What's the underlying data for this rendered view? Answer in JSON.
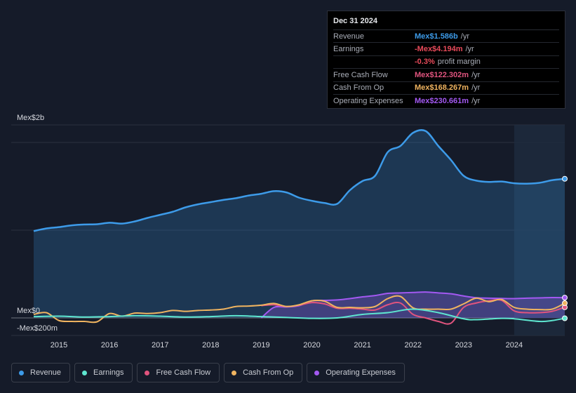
{
  "tooltip": {
    "date": "Dec 31 2024",
    "rows": [
      {
        "label": "Revenue",
        "value": "Mex$1.586b",
        "suffix": "/yr",
        "color": "#3d9be9"
      },
      {
        "label": "Earnings",
        "value": "-Mex$4.194m",
        "suffix": "/yr",
        "color": "#ea4b5b"
      },
      {
        "label": "",
        "value": "-0.3%",
        "suffix": "profit margin",
        "color": "#ea4b5b"
      },
      {
        "label": "Free Cash Flow",
        "value": "Mex$122.302m",
        "suffix": "/yr",
        "color": "#e0547e"
      },
      {
        "label": "Cash From Op",
        "value": "Mex$168.267m",
        "suffix": "/yr",
        "color": "#f0b460"
      },
      {
        "label": "Operating Expenses",
        "value": "Mex$230.661m",
        "suffix": "/yr",
        "color": "#a359f2"
      }
    ]
  },
  "legend": [
    {
      "label": "Revenue",
      "color": "#3d9be9"
    },
    {
      "label": "Earnings",
      "color": "#5ee6d0"
    },
    {
      "label": "Free Cash Flow",
      "color": "#e0547e"
    },
    {
      "label": "Cash From Op",
      "color": "#f0b460"
    },
    {
      "label": "Operating Expenses",
      "color": "#a359f2"
    }
  ],
  "chart_data": {
    "type": "area",
    "title": "",
    "y_unit": "Mex$ millions",
    "y_tick_labels": [
      {
        "value": 2000,
        "label": "Mex$2b"
      },
      {
        "value": 0,
        "label": "Mex$0"
      },
      {
        "value": -200,
        "label": "-Mex$200m"
      }
    ],
    "ylim": [
      -200,
      2200
    ],
    "xlim": [
      2014.5,
      2025.0
    ],
    "x_ticks": [
      "2015",
      "2016",
      "2017",
      "2018",
      "2019",
      "2020",
      "2021",
      "2022",
      "2023",
      "2024"
    ],
    "highlight_from": 2024.0,
    "series": [
      {
        "name": "Revenue",
        "color": "#3d9be9",
        "fill": true,
        "points": [
          [
            2014.5,
            990
          ],
          [
            2014.75,
            1020
          ],
          [
            2015.0,
            1035
          ],
          [
            2015.25,
            1055
          ],
          [
            2015.5,
            1065
          ],
          [
            2015.75,
            1068
          ],
          [
            2016.0,
            1085
          ],
          [
            2016.25,
            1075
          ],
          [
            2016.5,
            1100
          ],
          [
            2016.75,
            1140
          ],
          [
            2017.0,
            1175
          ],
          [
            2017.25,
            1210
          ],
          [
            2017.5,
            1260
          ],
          [
            2017.75,
            1295
          ],
          [
            2018.0,
            1320
          ],
          [
            2018.25,
            1345
          ],
          [
            2018.5,
            1365
          ],
          [
            2018.75,
            1395
          ],
          [
            2019.0,
            1415
          ],
          [
            2019.25,
            1445
          ],
          [
            2019.5,
            1430
          ],
          [
            2019.75,
            1370
          ],
          [
            2020.0,
            1335
          ],
          [
            2020.25,
            1310
          ],
          [
            2020.5,
            1300
          ],
          [
            2020.75,
            1455
          ],
          [
            2021.0,
            1560
          ],
          [
            2021.25,
            1620
          ],
          [
            2021.5,
            1890
          ],
          [
            2021.75,
            1960
          ],
          [
            2022.0,
            2110
          ],
          [
            2022.25,
            2130
          ],
          [
            2022.5,
            1960
          ],
          [
            2022.75,
            1800
          ],
          [
            2023.0,
            1620
          ],
          [
            2023.25,
            1565
          ],
          [
            2023.5,
            1550
          ],
          [
            2023.75,
            1555
          ],
          [
            2024.0,
            1535
          ],
          [
            2024.25,
            1530
          ],
          [
            2024.5,
            1540
          ],
          [
            2024.75,
            1570
          ],
          [
            2025.0,
            1586
          ]
        ]
      },
      {
        "name": "Operating Expenses",
        "color": "#a359f2",
        "fill": true,
        "points": [
          [
            2019.0,
            0
          ],
          [
            2019.25,
            120
          ],
          [
            2019.5,
            125
          ],
          [
            2019.75,
            140
          ],
          [
            2020.0,
            195
          ],
          [
            2020.25,
            200
          ],
          [
            2020.5,
            205
          ],
          [
            2020.75,
            220
          ],
          [
            2021.0,
            240
          ],
          [
            2021.25,
            255
          ],
          [
            2021.5,
            280
          ],
          [
            2021.75,
            285
          ],
          [
            2022.0,
            290
          ],
          [
            2022.25,
            295
          ],
          [
            2022.5,
            285
          ],
          [
            2022.75,
            275
          ],
          [
            2023.0,
            250
          ],
          [
            2023.25,
            230
          ],
          [
            2023.5,
            225
          ],
          [
            2023.75,
            222
          ],
          [
            2024.0,
            220
          ],
          [
            2024.25,
            225
          ],
          [
            2024.5,
            228
          ],
          [
            2024.75,
            232
          ],
          [
            2025.0,
            231
          ]
        ]
      },
      {
        "name": "Free Cash Flow",
        "color": "#e0547e",
        "fill": false,
        "points": [
          [
            2019.0,
            140
          ],
          [
            2019.25,
            150
          ],
          [
            2019.5,
            130
          ],
          [
            2019.75,
            145
          ],
          [
            2020.0,
            175
          ],
          [
            2020.25,
            160
          ],
          [
            2020.5,
            110
          ],
          [
            2020.75,
            110
          ],
          [
            2021.0,
            100
          ],
          [
            2021.25,
            90
          ],
          [
            2021.5,
            150
          ],
          [
            2021.75,
            170
          ],
          [
            2022.0,
            40
          ],
          [
            2022.25,
            0
          ],
          [
            2022.5,
            -40
          ],
          [
            2022.75,
            -60
          ],
          [
            2023.0,
            120
          ],
          [
            2023.25,
            170
          ],
          [
            2023.5,
            195
          ],
          [
            2023.75,
            200
          ],
          [
            2024.0,
            80
          ],
          [
            2024.25,
            60
          ],
          [
            2024.5,
            60
          ],
          [
            2024.75,
            75
          ],
          [
            2025.0,
            122
          ]
        ]
      },
      {
        "name": "Cash From Op",
        "color": "#f0b460",
        "fill": false,
        "points": [
          [
            2014.5,
            40
          ],
          [
            2014.75,
            60
          ],
          [
            2015.0,
            -30
          ],
          [
            2015.25,
            -40
          ],
          [
            2015.5,
            -40
          ],
          [
            2015.75,
            -45
          ],
          [
            2016.0,
            50
          ],
          [
            2016.25,
            20
          ],
          [
            2016.5,
            55
          ],
          [
            2016.75,
            50
          ],
          [
            2017.0,
            60
          ],
          [
            2017.25,
            85
          ],
          [
            2017.5,
            75
          ],
          [
            2017.75,
            85
          ],
          [
            2018.0,
            90
          ],
          [
            2018.25,
            100
          ],
          [
            2018.5,
            130
          ],
          [
            2018.75,
            135
          ],
          [
            2019.0,
            145
          ],
          [
            2019.25,
            165
          ],
          [
            2019.5,
            130
          ],
          [
            2019.75,
            150
          ],
          [
            2020.0,
            195
          ],
          [
            2020.25,
            190
          ],
          [
            2020.5,
            120
          ],
          [
            2020.75,
            120
          ],
          [
            2021.0,
            115
          ],
          [
            2021.25,
            130
          ],
          [
            2021.5,
            220
          ],
          [
            2021.75,
            245
          ],
          [
            2022.0,
            115
          ],
          [
            2022.25,
            100
          ],
          [
            2022.5,
            100
          ],
          [
            2022.75,
            100
          ],
          [
            2023.0,
            160
          ],
          [
            2023.25,
            225
          ],
          [
            2023.5,
            185
          ],
          [
            2023.75,
            210
          ],
          [
            2024.0,
            120
          ],
          [
            2024.25,
            100
          ],
          [
            2024.5,
            95
          ],
          [
            2024.75,
            100
          ],
          [
            2025.0,
            168
          ]
        ]
      },
      {
        "name": "Earnings",
        "color": "#5ee6d0",
        "fill": false,
        "points": [
          [
            2014.5,
            15
          ],
          [
            2015.0,
            20
          ],
          [
            2015.5,
            10
          ],
          [
            2016.0,
            15
          ],
          [
            2016.5,
            25
          ],
          [
            2017.0,
            20
          ],
          [
            2017.5,
            10
          ],
          [
            2018.0,
            15
          ],
          [
            2018.5,
            25
          ],
          [
            2019.0,
            15
          ],
          [
            2019.5,
            5
          ],
          [
            2020.0,
            -5
          ],
          [
            2020.5,
            0
          ],
          [
            2021.0,
            40
          ],
          [
            2021.5,
            60
          ],
          [
            2022.0,
            100
          ],
          [
            2022.5,
            60
          ],
          [
            2023.0,
            -10
          ],
          [
            2023.25,
            -20
          ],
          [
            2023.75,
            -5
          ],
          [
            2024.0,
            -10
          ],
          [
            2024.5,
            -40
          ],
          [
            2024.75,
            -30
          ],
          [
            2025.0,
            -4
          ]
        ]
      }
    ]
  }
}
